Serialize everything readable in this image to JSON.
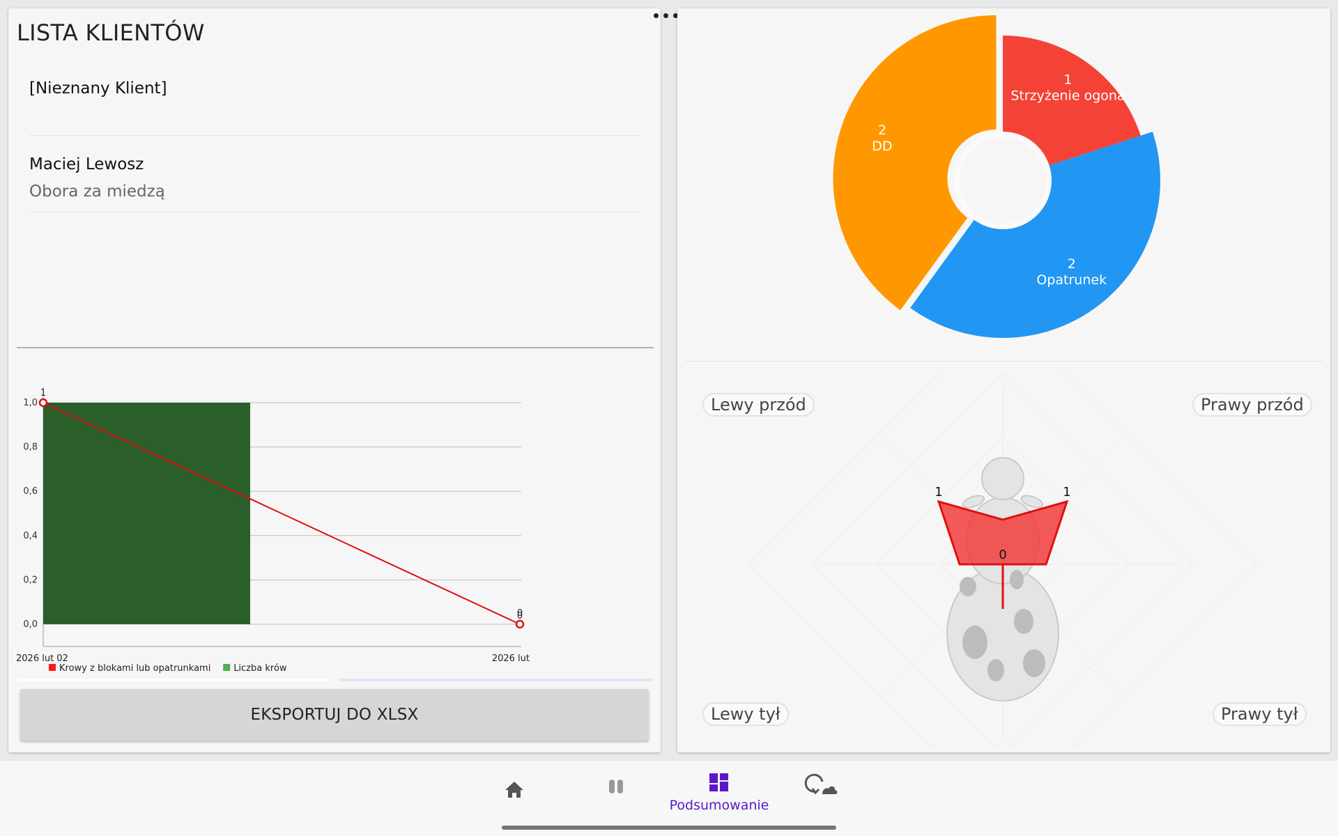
{
  "clients": {
    "title": "LISTA KLIENTÓW",
    "items": [
      {
        "name": "[Nieznany Klient]",
        "location": ""
      },
      {
        "name": "Maciej Lewosz",
        "location": "Obora za miedzą"
      }
    ]
  },
  "line_chart": {
    "y_ticks": [
      "1,0",
      "0,8",
      "0,6",
      "0,4",
      "0,2",
      "0,0"
    ],
    "x_labels": [
      "2026 lut 02",
      "2026 lut"
    ],
    "point_labels": [
      "1",
      "0",
      "0"
    ],
    "legend": [
      {
        "label": "Krowy z blokami lub opatrunkami",
        "color": "#ff1a1a"
      },
      {
        "label": "Liczba krów",
        "color": "#4caf50"
      }
    ]
  },
  "export": {
    "label": "EKSPORTUJ DO XLSX"
  },
  "donut": {
    "slices": [
      {
        "count": "1",
        "label": "Strzyżenie ogona",
        "value": 1,
        "color": "#f44336"
      },
      {
        "count": "2",
        "label": "Opatrunek",
        "value": 2,
        "color": "#2196f3"
      },
      {
        "count": "2",
        "label": "DD",
        "value": 2,
        "color": "#ff9800"
      }
    ]
  },
  "legs": {
    "front_left": "Lewy przód",
    "front_right": "Prawy przód",
    "rear_left": "Lewy tył",
    "rear_right": "Prawy tył",
    "values": {
      "front_left": "1",
      "front_right": "1",
      "center": "0"
    }
  },
  "chart_data": [
    {
      "type": "bar",
      "x": [
        "2026 lut 02",
        "2026 lut"
      ],
      "series": [
        {
          "name": "Liczba krów",
          "type": "bar",
          "values": [
            1,
            0
          ]
        },
        {
          "name": "Krowy z blokami lub opatrunkami",
          "type": "line",
          "values": [
            1,
            0
          ]
        }
      ],
      "ylim": [
        0,
        1
      ],
      "grid": true,
      "legend": "bottom-left"
    },
    {
      "type": "pie",
      "categories": [
        "Strzyżenie ogona",
        "Opatrunek",
        "DD"
      ],
      "values": [
        1,
        2,
        2
      ]
    }
  ],
  "nav": {
    "items": [
      {
        "icon": "home-icon"
      },
      {
        "icon": "pause-icon"
      },
      {
        "icon": "dashboard-icon",
        "label": "Podsumowanie"
      },
      {
        "icon": "sync-icon"
      }
    ],
    "accent": "#5b18c9"
  }
}
